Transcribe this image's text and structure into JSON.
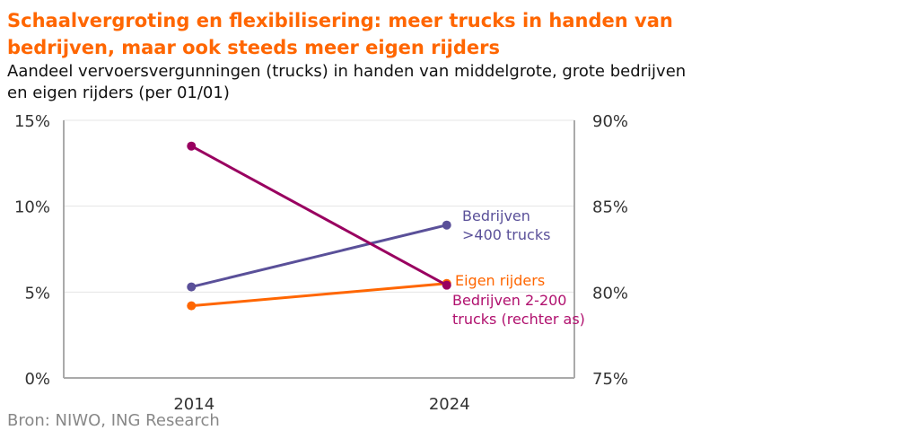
{
  "title": "Schaalvergroting en flexibilisering: meer trucks in handen van bedrijven, maar ook steeds meer eigen rijders",
  "subtitle": "Aandeel vervoersvergunningen (trucks) in handen van middelgrote, grote bedrijven en eigen rijders (per 01/01)",
  "source": "Bron: NIWO, ING Research",
  "chart_data": {
    "type": "line",
    "x": [
      2014,
      2024
    ],
    "x_tick_labels": [
      "2014",
      "2024"
    ],
    "xlim": [
      2009,
      2029
    ],
    "y_left": {
      "range": [
        0,
        15
      ],
      "ticks": [
        0,
        5,
        10,
        15
      ],
      "tick_labels": [
        "0%",
        "5%",
        "10%",
        "15%"
      ]
    },
    "y_right": {
      "range": [
        75,
        90
      ],
      "ticks": [
        75,
        80,
        85,
        90
      ],
      "tick_labels": [
        "75%",
        "80%",
        "85%",
        "90%"
      ]
    },
    "grid": true,
    "series": [
      {
        "name": "Bedrijven >400 trucks",
        "label_lines": [
          "Bedrijven",
          ">400 trucks"
        ],
        "axis": "left",
        "values": [
          5.3,
          8.9
        ],
        "color": "#5a5099"
      },
      {
        "name": "Eigen rijders",
        "label_lines": [
          "Eigen rijders"
        ],
        "axis": "left",
        "values": [
          4.2,
          5.5
        ],
        "color": "#ff6600"
      },
      {
        "name": "Bedrijven 2-200 trucks (rechter as)",
        "label_lines": [
          "Bedrijven 2-200",
          "trucks (rechter as)"
        ],
        "axis": "right",
        "values": [
          88.5,
          80.4
        ],
        "color": "#990060",
        "label_color": "#b0106e"
      }
    ]
  }
}
